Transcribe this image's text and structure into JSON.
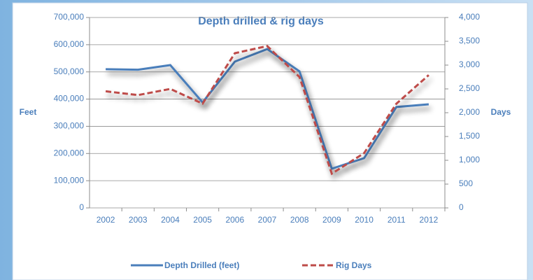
{
  "chart_data": {
    "type": "line",
    "title": "Depth drilled & rig days",
    "y_label": "Feet",
    "y2_label": "Days",
    "categories": [
      "2002",
      "2003",
      "2004",
      "2005",
      "2006",
      "2007",
      "2008",
      "2009",
      "2010",
      "2011",
      "2012"
    ],
    "series": [
      {
        "name": "Depth Drilled (feet)",
        "color": "#4a7ebb",
        "values": [
          510000,
          508000,
          525000,
          388000,
          538000,
          584000,
          502000,
          144000,
          183000,
          371000,
          381000
        ]
      },
      {
        "name": "Rig Days",
        "color": "#be4b48",
        "axis": "y2",
        "dashed": true,
        "values": [
          2450,
          2370,
          2500,
          2190,
          3250,
          3400,
          2750,
          720,
          1150,
          2190,
          2790
        ]
      }
    ],
    "ylim": [
      0,
      700000
    ],
    "yticks": [
      0,
      {
        "value": 100000,
        "label": "100,000"
      },
      {
        "value": 200000,
        "label": "200,000"
      },
      {
        "value": 300000,
        "label": "300,000"
      },
      {
        "value": 400000,
        "label": "400,000"
      },
      {
        "value": 500000,
        "label": "500,000"
      },
      {
        "value": 600000,
        "label": "600,000"
      },
      {
        "value": 700000,
        "label": "700,000"
      }
    ],
    "y2lim": [
      0,
      4000
    ],
    "y2ticks": [
      0,
      500,
      {
        "value": 1000,
        "label": "1,000"
      },
      {
        "value": 1500,
        "label": "1,500"
      },
      {
        "value": 2000,
        "label": "2,000"
      },
      {
        "value": 2500,
        "label": "2,500"
      },
      {
        "value": 3000,
        "label": "3,000"
      },
      {
        "value": 3500,
        "label": "3,500"
      },
      {
        "value": 4000,
        "label": "4,000"
      }
    ],
    "grid": true,
    "legend": "bottom"
  }
}
